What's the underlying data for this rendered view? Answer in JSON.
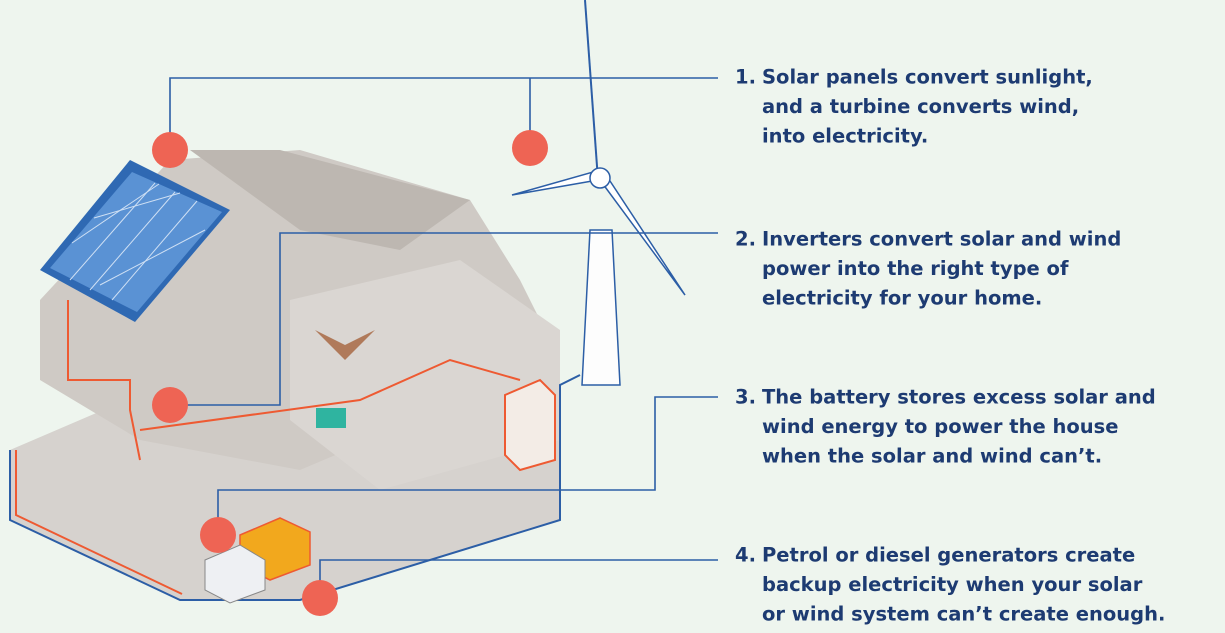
{
  "steps": [
    {
      "number": "1.",
      "lines": [
        "Solar panels convert sunlight,",
        "and a turbine converts wind,",
        "into electricity."
      ]
    },
    {
      "number": "2.",
      "lines": [
        "Inverters convert solar and wind",
        "power into the right type of",
        "electricity for your home."
      ]
    },
    {
      "number": "3.",
      "lines": [
        "The battery stores excess solar and",
        "wind energy to power the house",
        "when the solar and wind can’t."
      ]
    },
    {
      "number": "4.",
      "lines": [
        "Petrol or diesel generators create",
        "backup electricity when your solar",
        "or wind system can’t create enough."
      ]
    }
  ]
}
